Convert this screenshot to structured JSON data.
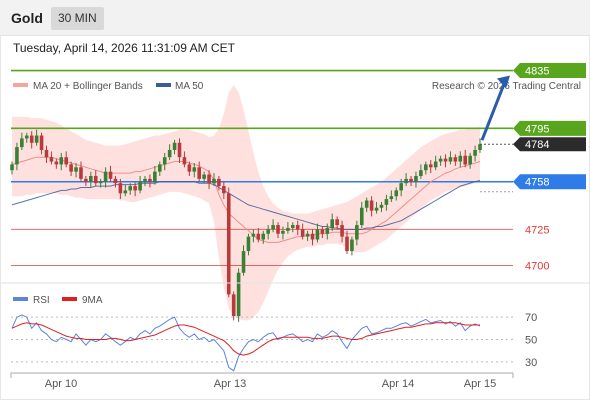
{
  "header": {
    "instrument": "Gold",
    "timeframe": "30 MIN"
  },
  "datetime": "Tuesday, April 14, 2026 11:31:09 AM CET",
  "legend": {
    "bollinger": "MA 20 + Bollinger Bands",
    "ma50": "MA 50",
    "rsi": "RSI",
    "rsi_ma": "9MA"
  },
  "copyright": "Research © 2026 Trading Central",
  "colors": {
    "resistance": "#5aa51e",
    "pivot": "#2f7be8",
    "support": "#e03a3a",
    "bollinger_fill": "#fdd7d4",
    "ma20": "#f08c8c",
    "ma50": "#3d5a99",
    "candle_up": "#3a7f34",
    "candle_down": "#b83a3a",
    "rsi": "#5b84e0",
    "rsi_ma": "#e02020",
    "current_price_tag": "#2b2b2b",
    "arrow": "#2a5ca8"
  },
  "chart_data": {
    "type": "candlestick",
    "price_range": [
      4650,
      4850
    ],
    "x_labels": [
      "Apr 10",
      "Apr 13",
      "Apr 14",
      "Apr 15"
    ],
    "current_price": 4784,
    "levels": [
      {
        "label": "4835",
        "value": 4835,
        "kind": "resistance"
      },
      {
        "label": "4795",
        "value": 4795,
        "kind": "resistance"
      },
      {
        "label": "4758",
        "value": 4758,
        "kind": "pivot"
      },
      {
        "label": "4725",
        "value": 4725,
        "kind": "support"
      },
      {
        "label": "4700",
        "value": 4700,
        "kind": "support"
      }
    ],
    "closes": [
      4770,
      4782,
      4788,
      4790,
      4785,
      4790,
      4780,
      4775,
      4772,
      4770,
      4775,
      4770,
      4765,
      4768,
      4760,
      4758,
      4762,
      4757,
      4758,
      4765,
      4760,
      4757,
      4750,
      4752,
      4755,
      4752,
      4758,
      4760,
      4758,
      4765,
      4770,
      4775,
      4780,
      4785,
      4775,
      4770,
      4765,
      4768,
      4760,
      4763,
      4757,
      4760,
      4755,
      4750,
      4680,
      4665,
      4695,
      4710,
      4720,
      4722,
      4718,
      4722,
      4725,
      4728,
      4722,
      4724,
      4726,
      4728,
      4725,
      4720,
      4722,
      4718,
      4725,
      4722,
      4726,
      4732,
      4728,
      4720,
      4710,
      4718,
      4728,
      4740,
      4745,
      4738,
      4740,
      4742,
      4746,
      4748,
      4752,
      4757,
      4760,
      4758,
      4762,
      4766,
      4770,
      4768,
      4772,
      4774,
      4772,
      4775,
      4772,
      4776,
      4770,
      4776,
      4780,
      4784
    ],
    "bb_upper": [
      4803,
      4803,
      4803,
      4803,
      4802,
      4802,
      4802,
      4801,
      4800,
      4799,
      4797,
      4795,
      4793,
      4791,
      4789,
      4787,
      4786,
      4785,
      4784,
      4783,
      4783,
      4783,
      4783,
      4784,
      4785,
      4786,
      4787,
      4788,
      4789,
      4790,
      4790,
      4791,
      4792,
      4793,
      4794,
      4794,
      4794,
      4793,
      4792,
      4791,
      4789,
      4790,
      4795,
      4805,
      4820,
      4825,
      4820,
      4808,
      4793,
      4778,
      4765,
      4755,
      4748,
      4743,
      4740,
      4738,
      4737,
      4736,
      4736,
      4736,
      4736,
      4737,
      4738,
      4739,
      4740,
      4741,
      4742,
      4743,
      4744,
      4746,
      4748,
      4750,
      4752,
      4754,
      4756,
      4758,
      4761,
      4764,
      4767,
      4770,
      4773,
      4776,
      4779,
      4782,
      4784,
      4786,
      4788,
      4790,
      4791,
      4792,
      4793,
      4794,
      4794,
      4795,
      4795,
      4796
    ],
    "bb_lower": [
      4748,
      4748,
      4748,
      4749,
      4749,
      4750,
      4750,
      4750,
      4750,
      4750,
      4749,
      4749,
      4748,
      4747,
      4747,
      4746,
      4746,
      4746,
      4746,
      4746,
      4746,
      4746,
      4745,
      4745,
      4744,
      4744,
      4745,
      4746,
      4747,
      4748,
      4749,
      4750,
      4751,
      4751,
      4751,
      4750,
      4749,
      4748,
      4747,
      4745,
      4743,
      4730,
      4705,
      4685,
      4670,
      4665,
      4663,
      4662,
      4662,
      4664,
      4668,
      4674,
      4682,
      4690,
      4697,
      4702,
      4706,
      4709,
      4711,
      4712,
      4713,
      4713,
      4714,
      4714,
      4715,
      4715,
      4715,
      4714,
      4712,
      4710,
      4709,
      4709,
      4710,
      4712,
      4714,
      4716,
      4718,
      4721,
      4724,
      4727,
      4730,
      4733,
      4736,
      4739,
      4742,
      4745,
      4747,
      4749,
      4751,
      4752,
      4753,
      4754,
      4755,
      4756,
      4757,
      4758
    ],
    "ma20": [
      4770,
      4771,
      4772,
      4773,
      4774,
      4775,
      4775,
      4775,
      4775,
      4774,
      4773,
      4772,
      4771,
      4770,
      4769,
      4768,
      4767,
      4766,
      4765,
      4764,
      4764,
      4764,
      4764,
      4764,
      4764,
      4765,
      4765,
      4766,
      4767,
      4768,
      4769,
      4770,
      4771,
      4772,
      4772,
      4772,
      4771,
      4770,
      4769,
      4767,
      4765,
      4759,
      4749,
      4742,
      4736,
      4733,
      4730,
      4727,
      4724,
      4721,
      4718,
      4717,
      4716,
      4716,
      4716,
      4717,
      4718,
      4719,
      4720,
      4720,
      4721,
      4721,
      4722,
      4722,
      4722,
      4723,
      4723,
      4723,
      4722,
      4722,
      4722,
      4722,
      4723,
      4725,
      4727,
      4729,
      4731,
      4734,
      4737,
      4740,
      4743,
      4746,
      4749,
      4752,
      4755,
      4758,
      4760,
      4762,
      4764,
      4765,
      4767,
      4768,
      4769,
      4770,
      4771,
      4772
    ],
    "ma50": [
      4742,
      4743,
      4744,
      4745,
      4746,
      4747,
      4748,
      4749,
      4750,
      4751,
      4752,
      4752,
      4753,
      4753,
      4754,
      4754,
      4754,
      4755,
      4755,
      4755,
      4755,
      4756,
      4756,
      4756,
      4756,
      4756,
      4757,
      4757,
      4757,
      4757,
      4758,
      4758,
      4758,
      4758,
      4758,
      4758,
      4758,
      4758,
      4757,
      4757,
      4757,
      4756,
      4754,
      4752,
      4750,
      4748,
      4746,
      4744,
      4742,
      4741,
      4740,
      4739,
      4738,
      4737,
      4736,
      4735,
      4734,
      4733,
      4732,
      4731,
      4730,
      4729,
      4728,
      4727,
      4727,
      4726,
      4726,
      4725,
      4725,
      4725,
      4725,
      4725,
      4726,
      4726,
      4727,
      4727,
      4728,
      4729,
      4730,
      4731,
      4733,
      4735,
      4737,
      4739,
      4741,
      4743,
      4745,
      4747,
      4749,
      4751,
      4753,
      4755,
      4756,
      4757,
      4758,
      4759
    ],
    "rsi_axis_labels": [
      "70",
      "50",
      "30"
    ],
    "rsi_range": [
      20,
      80
    ],
    "rsi": [
      60,
      70,
      72,
      70,
      60,
      65,
      58,
      55,
      50,
      48,
      52,
      50,
      48,
      55,
      50,
      45,
      50,
      48,
      50,
      55,
      52,
      48,
      45,
      48,
      52,
      50,
      55,
      58,
      55,
      60,
      62,
      65,
      68,
      70,
      60,
      55,
      52,
      55,
      50,
      52,
      48,
      50,
      45,
      40,
      25,
      22,
      35,
      42,
      48,
      50,
      48,
      52,
      55,
      56,
      50,
      52,
      54,
      55,
      52,
      48,
      50,
      48,
      55,
      52,
      54,
      58,
      55,
      48,
      42,
      50,
      55,
      60,
      62,
      55,
      56,
      58,
      60,
      60,
      62,
      64,
      65,
      62,
      64,
      66,
      68,
      65,
      66,
      67,
      64,
      66,
      62,
      65,
      58,
      62,
      64,
      62
    ],
    "rsi_ma": [
      60,
      62,
      64,
      65,
      64,
      64,
      63,
      61,
      59,
      57,
      55,
      53,
      52,
      51,
      51,
      50,
      50,
      50,
      50,
      50,
      51,
      51,
      50,
      49,
      49,
      50,
      51,
      52,
      53,
      54,
      56,
      58,
      60,
      62,
      63,
      63,
      62,
      61,
      59,
      57,
      55,
      53,
      51,
      49,
      45,
      40,
      37,
      36,
      37,
      39,
      42,
      45,
      48,
      50,
      51,
      52,
      52,
      52,
      52,
      52,
      52,
      51,
      51,
      51,
      52,
      53,
      53,
      52,
      51,
      50,
      50,
      51,
      53,
      54,
      55,
      56,
      57,
      58,
      59,
      60,
      61,
      61,
      62,
      63,
      64,
      64,
      65,
      65,
      65,
      65,
      65,
      64,
      63,
      63,
      63,
      63
    ]
  }
}
